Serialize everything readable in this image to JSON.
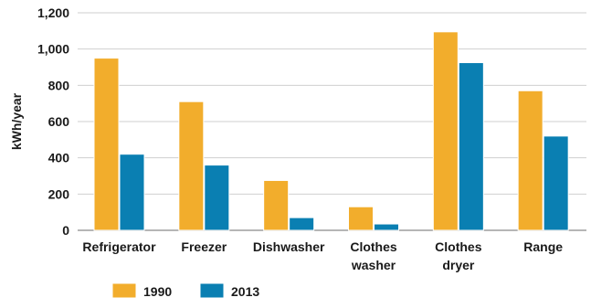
{
  "chart_data": {
    "type": "bar",
    "title": "",
    "xlabel": "",
    "ylabel": "kWh/year",
    "ylim": [
      0,
      1200
    ],
    "yticks": [
      0,
      200,
      400,
      600,
      800,
      1000,
      1200
    ],
    "ytick_labels": [
      "0",
      "200",
      "400",
      "600",
      "800",
      "1,000",
      "1,200"
    ],
    "grid": true,
    "legend_position": "bottom-left",
    "categories": [
      [
        "Refrigerator"
      ],
      [
        "Freezer"
      ],
      [
        "Dishwasher"
      ],
      [
        "Clothes",
        "washer"
      ],
      [
        "Clothes",
        "dryer"
      ],
      [
        "Range"
      ]
    ],
    "series": [
      {
        "name": "1990",
        "color": "#f2ad2c",
        "values": [
          950,
          710,
          275,
          130,
          1095,
          770
        ]
      },
      {
        "name": "2013",
        "color": "#0a7fb2",
        "values": [
          420,
          360,
          70,
          35,
          925,
          520
        ]
      }
    ]
  }
}
